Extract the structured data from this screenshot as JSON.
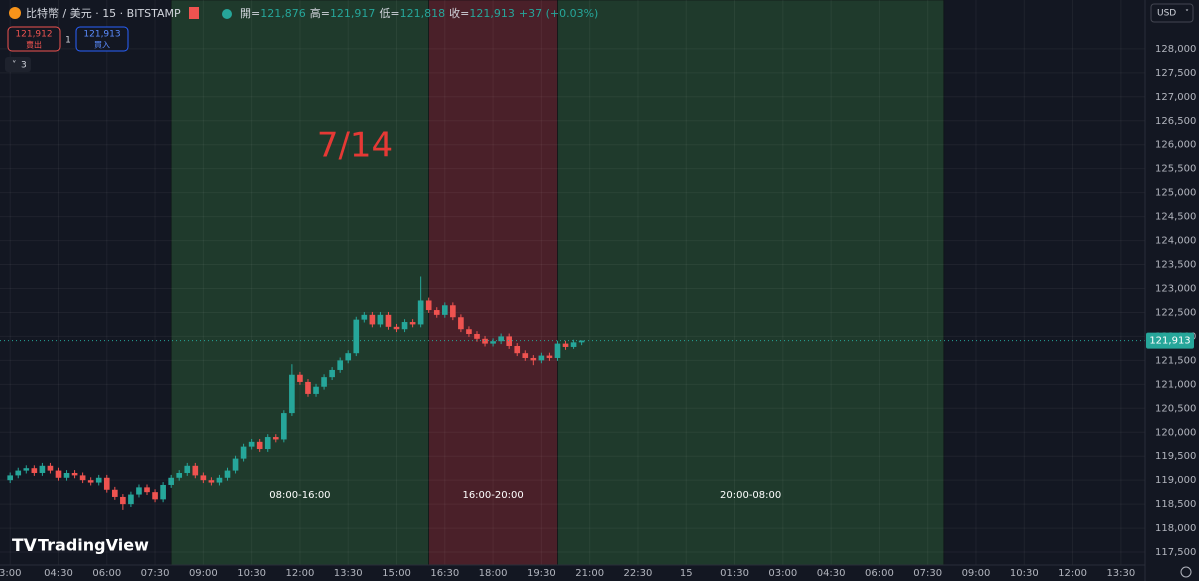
{
  "header": {
    "symbol": "比特幣 / 美元 · 15 · BITSTAMP",
    "open_label": "開=",
    "open": "121,876",
    "high_label": "高=",
    "high": "121,917",
    "low_label": "低=",
    "low": "121,818",
    "close_label": "收=",
    "close": "121,913",
    "change": "+37 (+0.03%)",
    "sell_price": "121,912",
    "sell": "賣出",
    "spread": "1",
    "buy_price": "121,913",
    "buy": "買入",
    "indicators": "3",
    "currency": "USD",
    "brand": "TradingView"
  },
  "chart_data": {
    "type": "candlestick",
    "annotation": "7/14",
    "x": [
      0,
      15,
      30,
      45,
      60,
      75,
      90,
      105,
      120,
      135,
      150,
      165,
      180,
      195,
      210,
      225,
      240,
      255,
      270,
      285,
      300,
      315,
      330,
      345,
      360,
      375,
      390,
      405,
      420,
      435,
      450,
      465,
      480,
      495,
      510,
      525,
      540,
      555,
      570,
      585,
      600,
      615,
      630,
      645,
      660,
      675,
      690,
      705,
      720,
      735,
      750,
      765,
      780,
      795,
      810,
      825,
      840,
      855,
      870,
      885,
      900,
      915,
      930,
      945,
      960,
      975,
      990,
      1005,
      1020,
      1035,
      1050,
      1065
    ],
    "open": [
      119000,
      119100,
      119200,
      119250,
      119150,
      119300,
      119200,
      119050,
      119150,
      119100,
      119000,
      118950,
      119050,
      118800,
      118650,
      118500,
      118700,
      118850,
      118750,
      118600,
      118900,
      119050,
      119150,
      119300,
      119100,
      119000,
      118950,
      119050,
      119200,
      119450,
      119700,
      119800,
      119650,
      119900,
      119850,
      120400,
      121200,
      121050,
      120800,
      120950,
      121150,
      121300,
      121500,
      121650,
      122350,
      122450,
      122250,
      122450,
      122200,
      122150,
      122300,
      122250,
      122750,
      122550,
      122450,
      122650,
      122400,
      122150,
      122050,
      121950,
      121850,
      121900,
      122000,
      121800,
      121650,
      121550,
      121500,
      121600,
      121550,
      121850,
      121780,
      121876
    ],
    "high": [
      119160,
      119260,
      119310,
      119310,
      119360,
      119360,
      119260,
      119210,
      119210,
      119160,
      119060,
      119110,
      119110,
      118860,
      118710,
      118760,
      118910,
      118910,
      118810,
      118960,
      119110,
      119210,
      119360,
      119360,
      119160,
      119060,
      119110,
      119260,
      119510,
      119760,
      119860,
      119860,
      119960,
      119960,
      120460,
      121420,
      121260,
      121110,
      121010,
      121210,
      121360,
      121560,
      121710,
      122410,
      122510,
      122510,
      122510,
      122510,
      122260,
      122360,
      122360,
      123250,
      122810,
      122610,
      122710,
      122710,
      122460,
      122210,
      122110,
      122010,
      121960,
      122060,
      122060,
      121860,
      121710,
      121610,
      121660,
      121660,
      121910,
      121910,
      121930,
      121917
    ],
    "low": [
      118940,
      119040,
      119140,
      119090,
      119090,
      119140,
      118990,
      118990,
      119040,
      118940,
      118890,
      118890,
      118740,
      118590,
      118380,
      118440,
      118640,
      118690,
      118540,
      118540,
      118840,
      118990,
      119090,
      119040,
      118940,
      118890,
      118890,
      118990,
      119140,
      119390,
      119640,
      119590,
      119590,
      119790,
      119790,
      120340,
      120990,
      120740,
      120740,
      120890,
      121090,
      121240,
      121440,
      121590,
      122290,
      122190,
      122190,
      122140,
      122090,
      122090,
      122190,
      122190,
      122490,
      122390,
      122390,
      122340,
      122090,
      121990,
      121890,
      121790,
      121790,
      121840,
      121740,
      121590,
      121490,
      121400,
      121440,
      121490,
      121490,
      121720,
      121740,
      121818
    ],
    "close": [
      119100,
      119200,
      119250,
      119150,
      119300,
      119200,
      119050,
      119150,
      119100,
      119000,
      118950,
      119050,
      118800,
      118650,
      118500,
      118700,
      118850,
      118750,
      118600,
      118900,
      119050,
      119150,
      119300,
      119100,
      119000,
      118950,
      119050,
      119200,
      119450,
      119700,
      119800,
      119650,
      119900,
      119850,
      120400,
      121200,
      121050,
      120800,
      120950,
      121150,
      121300,
      121500,
      121650,
      122350,
      122450,
      122250,
      122450,
      122200,
      122150,
      122300,
      122250,
      122750,
      122550,
      122450,
      122650,
      122400,
      122150,
      122050,
      121950,
      121850,
      121900,
      122000,
      121800,
      121650,
      121550,
      121500,
      121600,
      121550,
      121850,
      121780,
      121876,
      121913
    ],
    "up_color": "#26a69a",
    "down_color": "#ef5350",
    "last_price_label": "121,913",
    "zones": [
      {
        "start": 300,
        "end": 780,
        "color": "#1f3a2c",
        "label": "08:00-16:00"
      },
      {
        "start": 780,
        "end": 1020,
        "color": "#4a2029",
        "label": "16:00-20:00"
      },
      {
        "start": 1020,
        "end": 1740,
        "color": "#1f3a2c",
        "label": "20:00-08:00"
      }
    ],
    "xlim": [
      -19,
      2115
    ],
    "xticks": [
      {
        "value": 0,
        "label": "3:00"
      },
      {
        "value": 90,
        "label": "04:30"
      },
      {
        "value": 180,
        "label": "06:00"
      },
      {
        "value": 270,
        "label": "07:30"
      },
      {
        "value": 360,
        "label": "09:00"
      },
      {
        "value": 450,
        "label": "10:30"
      },
      {
        "value": 540,
        "label": "12:00"
      },
      {
        "value": 630,
        "label": "13:30"
      },
      {
        "value": 720,
        "label": "15:00"
      },
      {
        "value": 810,
        "label": "16:30"
      },
      {
        "value": 900,
        "label": "18:00"
      },
      {
        "value": 990,
        "label": "19:30"
      },
      {
        "value": 1080,
        "label": "21:00"
      },
      {
        "value": 1170,
        "label": "22:30"
      },
      {
        "value": 1260,
        "label": "15"
      },
      {
        "value": 1350,
        "label": "01:30"
      },
      {
        "value": 1440,
        "label": "03:00"
      },
      {
        "value": 1530,
        "label": "04:30"
      },
      {
        "value": 1620,
        "label": "06:00"
      },
      {
        "value": 1710,
        "label": "07:30"
      },
      {
        "value": 1800,
        "label": "09:00"
      },
      {
        "value": 1890,
        "label": "10:30"
      },
      {
        "value": 1980,
        "label": "12:00"
      },
      {
        "value": 2070,
        "label": "13:30"
      }
    ],
    "ylim": [
      117230,
      129020
    ],
    "yticks": [
      {
        "value": 117500,
        "label": "117,500"
      },
      {
        "value": 118000,
        "label": "118,000"
      },
      {
        "value": 118500,
        "label": "118,500"
      },
      {
        "value": 119000,
        "label": "119,000"
      },
      {
        "value": 119500,
        "label": "119,500"
      },
      {
        "value": 120000,
        "label": "120,000"
      },
      {
        "value": 120500,
        "label": "120,500"
      },
      {
        "value": 121000,
        "label": "121,000"
      },
      {
        "value": 121500,
        "label": "121,500"
      },
      {
        "value": 122000,
        "label": "122,000"
      },
      {
        "value": 122500,
        "label": "122,500"
      },
      {
        "value": 123000,
        "label": "123,000"
      },
      {
        "value": 123500,
        "label": "123,500"
      },
      {
        "value": 124000,
        "label": "124,000"
      },
      {
        "value": 124500,
        "label": "124,500"
      },
      {
        "value": 125000,
        "label": "125,000"
      },
      {
        "value": 125500,
        "label": "125,500"
      },
      {
        "value": 126000,
        "label": "126,000"
      },
      {
        "value": 126500,
        "label": "126,500"
      },
      {
        "value": 127000,
        "label": "127,000"
      },
      {
        "value": 127500,
        "label": "127,500"
      },
      {
        "value": 128000,
        "label": "128,000"
      }
    ],
    "grid": true
  }
}
